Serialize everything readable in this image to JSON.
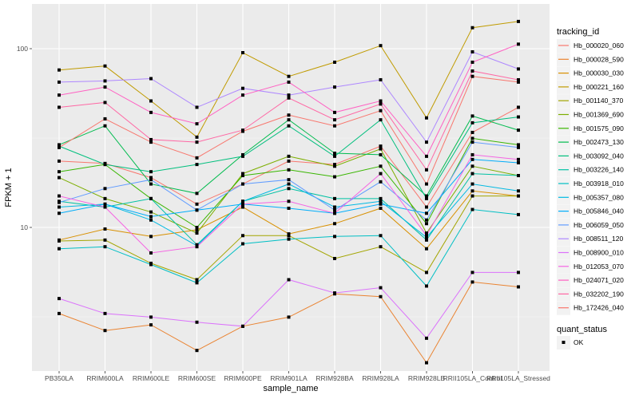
{
  "chart_data": {
    "type": "line",
    "title": "",
    "xlabel": "sample_name",
    "ylabel": "FPKM + 1",
    "y_scale": "log10",
    "ylim": [
      1.6,
      190
    ],
    "y_ticks": [
      10,
      100
    ],
    "y_tick_labels": [
      "10",
      "100"
    ],
    "grid": true,
    "categories": [
      "PB350LA",
      "RRIM600LA",
      "RRIM600LE",
      "RRIM600SE",
      "RRIM600PE",
      "RRIM901LA",
      "RRIM928BA",
      "RRIM928LA",
      "RRIM928LB",
      "RRII105LA_Control",
      "RRII105LA_Stressed"
    ],
    "legend": {
      "placement": "right",
      "color_title": "tracking_id",
      "shape_title": "quant_status",
      "shape_entries": [
        "OK"
      ]
    },
    "series": [
      {
        "name": "Hb_000020_060",
        "color": "#F8766D",
        "values": [
          23.5,
          22.8,
          19.0,
          13.5,
          17.5,
          23.5,
          22.5,
          28.5,
          13.0,
          34.0,
          47.0
        ]
      },
      {
        "name": "Hb_000028_590",
        "color": "#EA8331",
        "values": [
          3.3,
          2.65,
          2.85,
          2.05,
          2.8,
          3.15,
          4.25,
          4.1,
          1.75,
          4.95,
          4.65
        ]
      },
      {
        "name": "Hb_000030_030",
        "color": "#D89000",
        "values": [
          8.5,
          9.8,
          8.9,
          9.7,
          13.0,
          9.2,
          10.5,
          12.8,
          7.6,
          16.0,
          15.0
        ]
      },
      {
        "name": "Hb_000221_160",
        "color": "#C09B00",
        "values": [
          76,
          80,
          51,
          32,
          95,
          70,
          84,
          104,
          41,
          131,
          142
        ]
      },
      {
        "name": "Hb_001140_370",
        "color": "#A3A500",
        "values": [
          8.4,
          8.5,
          6.3,
          5.1,
          9.0,
          9.0,
          6.7,
          7.8,
          5.6,
          15.0,
          15.0
        ]
      },
      {
        "name": "Hb_001369_690",
        "color": "#7CAE00",
        "values": [
          19.0,
          14.5,
          12.2,
          9.3,
          20.0,
          25.0,
          22.0,
          27.5,
          9.3,
          22.0,
          19.5
        ]
      },
      {
        "name": "Hb_001575_090",
        "color": "#39B600",
        "values": [
          20.5,
          22.5,
          14.5,
          10.0,
          19.5,
          21.0,
          19.2,
          22.0,
          10.5,
          31.5,
          29.0
        ]
      },
      {
        "name": "Hb_002473_130",
        "color": "#00BB4E",
        "values": [
          29.0,
          37.0,
          17.5,
          15.5,
          25.5,
          40.0,
          26.0,
          25.5,
          15.0,
          42.0,
          35.0
        ]
      },
      {
        "name": "Hb_003092_040",
        "color": "#00BF7D",
        "values": [
          28.5,
          22.5,
          20.5,
          22.5,
          25.0,
          37.0,
          25.0,
          40.0,
          14.5,
          38.5,
          41.5
        ]
      },
      {
        "name": "Hb_003226_140",
        "color": "#00C1A3",
        "values": [
          14.0,
          13.0,
          14.5,
          8.0,
          14.0,
          16.5,
          14.5,
          14.5,
          8.5,
          20.0,
          19.5
        ]
      },
      {
        "name": "Hb_003918_010",
        "color": "#00BFC4",
        "values": [
          7.6,
          7.8,
          6.2,
          4.9,
          8.1,
          8.6,
          8.9,
          9.0,
          4.7,
          12.6,
          11.8
        ]
      },
      {
        "name": "Hb_005357_080",
        "color": "#00B9E3",
        "values": [
          13.0,
          13.5,
          11.0,
          7.9,
          14.0,
          17.5,
          13.0,
          14.0,
          8.8,
          17.5,
          16.0
        ]
      },
      {
        "name": "Hb_005846_040",
        "color": "#00ADFA",
        "values": [
          12.0,
          13.5,
          11.5,
          12.5,
          13.5,
          12.8,
          12.0,
          13.5,
          12.0,
          24.0,
          23.0
        ]
      },
      {
        "name": "Hb_006059_050",
        "color": "#619CFF",
        "values": [
          13.8,
          16.5,
          18.5,
          12.5,
          17.5,
          18.5,
          12.5,
          18.0,
          11.0,
          30.0,
          28.0
        ]
      },
      {
        "name": "Hb_008511_120",
        "color": "#AE87FF",
        "values": [
          65,
          66,
          68,
          47,
          60,
          55,
          61,
          67,
          30,
          96,
          77
        ]
      },
      {
        "name": "Hb_008900_010",
        "color": "#DB72FB",
        "values": [
          4.0,
          3.3,
          3.15,
          2.95,
          2.8,
          5.1,
          4.3,
          4.6,
          2.4,
          5.6,
          5.6
        ]
      },
      {
        "name": "Hb_012053_070",
        "color": "#F564E3",
        "values": [
          15.0,
          13.0,
          7.2,
          7.8,
          13.5,
          14.0,
          12.0,
          20.0,
          9.0,
          25.5,
          24.0
        ]
      },
      {
        "name": "Hb_024071_020",
        "color": "#FF61C3",
        "values": [
          55,
          61,
          44,
          38,
          55,
          65,
          44,
          51,
          25,
          84,
          106
        ]
      },
      {
        "name": "Hb_032202_190",
        "color": "#FF67A4",
        "values": [
          47,
          50,
          31,
          30,
          35,
          53,
          40,
          49,
          21,
          75,
          67
        ]
      },
      {
        "name": "Hb_172426_040",
        "color": "#F8766D",
        "values": [
          28.0,
          40.5,
          30.0,
          24.5,
          34.5,
          42.5,
          37.0,
          45.0,
          17.5,
          70.0,
          65.0
        ]
      }
    ]
  }
}
